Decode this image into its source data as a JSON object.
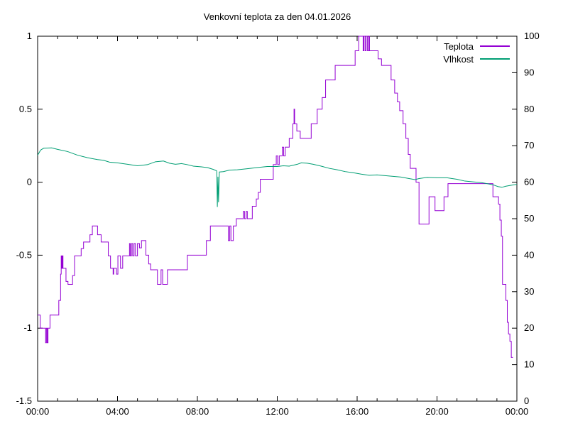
{
  "chart_data": {
    "type": "line",
    "title": "Venkovní teplota za den 04.01.2026",
    "xlabel": "",
    "ylabel_left": "",
    "ylabel_right": "",
    "x_range_hours": [
      0,
      24
    ],
    "y_left_range": [
      -1.5,
      1
    ],
    "y_right_range": [
      0,
      100
    ],
    "grid": "off",
    "legend_position": "top-right-inside",
    "x_ticks": [
      {
        "t": 0,
        "label": "00:00"
      },
      {
        "t": 4,
        "label": "04:00"
      },
      {
        "t": 8,
        "label": "08:00"
      },
      {
        "t": 12,
        "label": "12:00"
      },
      {
        "t": 16,
        "label": "16:00"
      },
      {
        "t": 20,
        "label": "20:00"
      },
      {
        "t": 24,
        "label": "00:00"
      }
    ],
    "x_minor_tick_every_hours": 1,
    "y_left_ticks": [
      {
        "v": 1,
        "label": "1"
      },
      {
        "v": 0.5,
        "label": "0.5"
      },
      {
        "v": 0,
        "label": "0"
      },
      {
        "v": -0.5,
        "label": "-0.5"
      },
      {
        "v": -1,
        "label": "-1"
      },
      {
        "v": -1.5,
        "label": "-1.5"
      }
    ],
    "y_right_ticks": [
      {
        "v": 0,
        "label": "0"
      },
      {
        "v": 10,
        "label": "10"
      },
      {
        "v": 20,
        "label": "20"
      },
      {
        "v": 30,
        "label": "30"
      },
      {
        "v": 40,
        "label": "40"
      },
      {
        "v": 50,
        "label": "50"
      },
      {
        "v": 60,
        "label": "60"
      },
      {
        "v": 70,
        "label": "70"
      },
      {
        "v": 80,
        "label": "80"
      },
      {
        "v": 90,
        "label": "90"
      },
      {
        "v": 100,
        "label": "100"
      }
    ],
    "series": [
      {
        "name": "Teplota",
        "axis": "left",
        "color": "#9400d3",
        "style": "steps",
        "step_segments": [
          [
            0.0,
            0.13,
            -0.91
          ],
          [
            0.13,
            0.4,
            -1.0
          ],
          [
            0.4,
            0.44,
            -1.1
          ],
          [
            0.44,
            0.48,
            -1.0
          ],
          [
            0.48,
            0.52,
            -1.1
          ],
          [
            0.52,
            0.62,
            -1.0
          ],
          [
            0.62,
            1.06,
            -0.91
          ],
          [
            1.06,
            1.15,
            -0.81
          ],
          [
            1.15,
            1.18,
            -0.63
          ],
          [
            1.18,
            1.21,
            -0.505
          ],
          [
            1.21,
            1.24,
            -0.59
          ],
          [
            1.24,
            1.27,
            -0.505
          ],
          [
            1.27,
            1.42,
            -0.59
          ],
          [
            1.42,
            1.52,
            -0.68
          ],
          [
            1.52,
            1.75,
            -0.7
          ],
          [
            1.75,
            1.85,
            -0.64
          ],
          [
            1.85,
            2.18,
            -0.505
          ],
          [
            2.18,
            2.3,
            -0.455
          ],
          [
            2.3,
            2.62,
            -0.41
          ],
          [
            2.62,
            2.74,
            -0.36
          ],
          [
            2.74,
            3.0,
            -0.3
          ],
          [
            3.0,
            3.18,
            -0.36
          ],
          [
            3.18,
            3.54,
            -0.41
          ],
          [
            3.54,
            3.65,
            -0.505
          ],
          [
            3.65,
            3.78,
            -0.59
          ],
          [
            3.78,
            3.81,
            -0.63
          ],
          [
            3.81,
            3.95,
            -0.59
          ],
          [
            3.95,
            4.02,
            -0.63
          ],
          [
            4.02,
            4.15,
            -0.505
          ],
          [
            4.15,
            4.26,
            -0.59
          ],
          [
            4.26,
            4.6,
            -0.505
          ],
          [
            4.6,
            4.64,
            -0.42
          ],
          [
            4.64,
            4.7,
            -0.505
          ],
          [
            4.7,
            4.76,
            -0.42
          ],
          [
            4.76,
            4.83,
            -0.505
          ],
          [
            4.83,
            4.9,
            -0.42
          ],
          [
            4.9,
            5.0,
            -0.505
          ],
          [
            5.0,
            5.1,
            -0.42
          ],
          [
            5.1,
            5.2,
            -0.45
          ],
          [
            5.2,
            5.42,
            -0.4
          ],
          [
            5.42,
            5.56,
            -0.5
          ],
          [
            5.56,
            5.66,
            -0.56
          ],
          [
            5.66,
            6.0,
            -0.6
          ],
          [
            6.0,
            6.18,
            -0.7
          ],
          [
            6.18,
            6.26,
            -0.6
          ],
          [
            6.26,
            6.5,
            -0.7
          ],
          [
            6.5,
            7.5,
            -0.6
          ],
          [
            7.5,
            8.45,
            -0.5
          ],
          [
            8.45,
            8.65,
            -0.4
          ],
          [
            8.65,
            9.55,
            -0.3
          ],
          [
            9.55,
            9.62,
            -0.4
          ],
          [
            9.62,
            9.68,
            -0.3
          ],
          [
            9.68,
            9.8,
            -0.4
          ],
          [
            9.8,
            9.95,
            -0.3
          ],
          [
            9.95,
            10.3,
            -0.25
          ],
          [
            10.3,
            10.36,
            -0.2
          ],
          [
            10.36,
            10.44,
            -0.25
          ],
          [
            10.44,
            10.5,
            -0.2
          ],
          [
            10.5,
            10.75,
            -0.25
          ],
          [
            10.75,
            10.95,
            -0.165
          ],
          [
            10.95,
            11.05,
            -0.115
          ],
          [
            11.05,
            11.15,
            -0.07
          ],
          [
            11.15,
            11.8,
            0.02
          ],
          [
            11.8,
            11.95,
            0.12
          ],
          [
            11.95,
            12.02,
            0.18
          ],
          [
            12.02,
            12.1,
            0.12
          ],
          [
            12.1,
            12.25,
            0.18
          ],
          [
            12.25,
            12.32,
            0.24
          ],
          [
            12.32,
            12.4,
            0.18
          ],
          [
            12.4,
            12.6,
            0.24
          ],
          [
            12.6,
            12.78,
            0.3
          ],
          [
            12.78,
            12.84,
            0.4
          ],
          [
            12.84,
            12.87,
            0.5
          ],
          [
            12.87,
            12.98,
            0.4
          ],
          [
            12.98,
            13.15,
            0.35
          ],
          [
            13.15,
            13.7,
            0.3
          ],
          [
            13.7,
            14.0,
            0.4
          ],
          [
            14.0,
            14.25,
            0.5
          ],
          [
            14.25,
            14.42,
            0.58
          ],
          [
            14.42,
            14.9,
            0.7
          ],
          [
            14.9,
            15.9,
            0.8
          ],
          [
            15.9,
            16.08,
            0.9
          ],
          [
            16.08,
            16.3,
            1.0
          ],
          [
            16.3,
            16.34,
            0.9
          ],
          [
            16.34,
            16.4,
            1.0
          ],
          [
            16.4,
            16.45,
            0.9
          ],
          [
            16.45,
            16.52,
            1.0
          ],
          [
            16.52,
            16.58,
            0.9
          ],
          [
            16.58,
            16.62,
            1.0
          ],
          [
            16.62,
            17.05,
            0.9
          ],
          [
            17.05,
            17.22,
            0.845
          ],
          [
            17.22,
            17.7,
            0.8
          ],
          [
            17.7,
            17.88,
            0.7
          ],
          [
            17.88,
            18.02,
            0.61
          ],
          [
            18.02,
            18.13,
            0.55
          ],
          [
            18.13,
            18.3,
            0.49
          ],
          [
            18.3,
            18.44,
            0.4
          ],
          [
            18.44,
            18.56,
            0.3
          ],
          [
            18.56,
            18.66,
            0.19
          ],
          [
            18.66,
            18.95,
            0.095
          ],
          [
            18.95,
            19.1,
            0.0
          ],
          [
            19.1,
            19.6,
            -0.287
          ],
          [
            19.6,
            19.9,
            -0.1
          ],
          [
            19.9,
            20.35,
            -0.195
          ],
          [
            20.35,
            20.55,
            -0.1
          ],
          [
            20.55,
            22.8,
            -0.01
          ],
          [
            22.8,
            23.08,
            -0.1
          ],
          [
            23.08,
            23.15,
            -0.15
          ],
          [
            23.15,
            23.22,
            -0.26
          ],
          [
            23.22,
            23.28,
            -0.37
          ],
          [
            23.28,
            23.45,
            -0.7
          ],
          [
            23.45,
            23.52,
            -0.81
          ],
          [
            23.52,
            23.58,
            -0.96
          ],
          [
            23.58,
            23.65,
            -1.04
          ],
          [
            23.65,
            23.72,
            -1.09
          ],
          [
            23.72,
            23.8,
            -1.2
          ]
        ]
      },
      {
        "name": "Vlhkost",
        "axis": "right",
        "color": "#009e73",
        "style": "line",
        "points": [
          [
            0.0,
            67.4
          ],
          [
            0.15,
            68.8
          ],
          [
            0.3,
            69.3
          ],
          [
            0.7,
            69.4
          ],
          [
            1.0,
            69.0
          ],
          [
            1.5,
            68.4
          ],
          [
            2.0,
            67.4
          ],
          [
            2.5,
            66.7
          ],
          [
            3.0,
            66.2
          ],
          [
            3.3,
            66.0
          ],
          [
            3.6,
            65.5
          ],
          [
            4.0,
            65.3
          ],
          [
            4.5,
            64.9
          ],
          [
            5.0,
            64.5
          ],
          [
            5.5,
            64.8
          ],
          [
            5.9,
            65.6
          ],
          [
            6.3,
            65.8
          ],
          [
            6.6,
            65.2
          ],
          [
            6.9,
            64.9
          ],
          [
            7.2,
            65.1
          ],
          [
            7.5,
            64.8
          ],
          [
            7.8,
            64.4
          ],
          [
            8.2,
            64.2
          ],
          [
            8.5,
            64.0
          ],
          [
            8.8,
            63.5
          ],
          [
            8.97,
            63.1
          ],
          [
            9.0,
            53.2
          ],
          [
            9.03,
            61.5
          ],
          [
            9.06,
            54.5
          ],
          [
            9.1,
            62.8
          ],
          [
            9.3,
            62.9
          ],
          [
            9.6,
            63.3
          ],
          [
            10.0,
            63.4
          ],
          [
            10.5,
            63.7
          ],
          [
            11.0,
            64.0
          ],
          [
            11.5,
            64.3
          ],
          [
            12.0,
            64.3
          ],
          [
            12.3,
            64.5
          ],
          [
            12.6,
            64.4
          ],
          [
            13.0,
            64.9
          ],
          [
            13.2,
            65.3
          ],
          [
            13.5,
            65.2
          ],
          [
            13.8,
            64.9
          ],
          [
            14.2,
            64.4
          ],
          [
            14.6,
            63.8
          ],
          [
            15.0,
            63.4
          ],
          [
            15.4,
            62.9
          ],
          [
            15.8,
            62.6
          ],
          [
            16.2,
            62.2
          ],
          [
            16.6,
            61.9
          ],
          [
            17.0,
            62.0
          ],
          [
            17.4,
            61.8
          ],
          [
            17.8,
            61.6
          ],
          [
            18.2,
            61.4
          ],
          [
            18.6,
            61.0
          ],
          [
            18.9,
            60.7
          ],
          [
            19.1,
            61.0
          ],
          [
            19.5,
            61.3
          ],
          [
            20.0,
            61.2
          ],
          [
            20.5,
            61.2
          ],
          [
            21.0,
            60.8
          ],
          [
            21.4,
            60.3
          ],
          [
            21.8,
            60.1
          ],
          [
            22.2,
            59.9
          ],
          [
            22.5,
            59.6
          ],
          [
            22.8,
            59.3
          ],
          [
            23.05,
            58.8
          ],
          [
            23.25,
            58.6
          ],
          [
            23.45,
            58.9
          ],
          [
            23.65,
            59.1
          ],
          [
            23.85,
            59.3
          ],
          [
            24.0,
            59.4
          ]
        ]
      }
    ]
  }
}
